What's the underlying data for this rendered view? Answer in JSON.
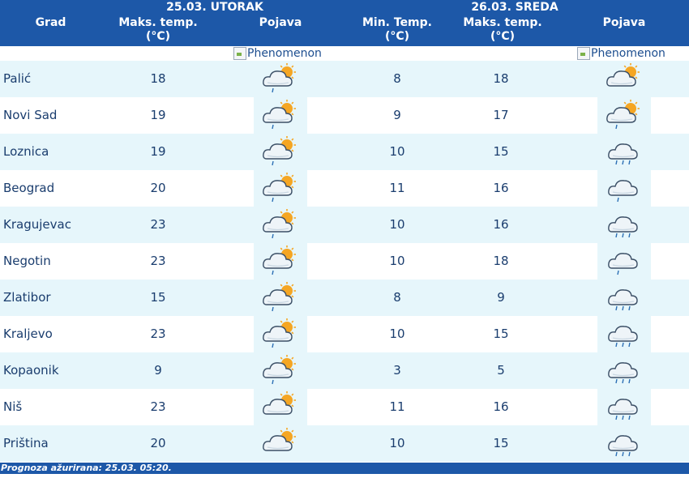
{
  "header": {
    "date1": "25.03. UTORAK",
    "date2": "26.03. SREDA",
    "col_city": "Grad",
    "col_max1": "Maks. temp.",
    "col_max1_unit": "(°C)",
    "col_phen1": "Pojava",
    "col_min2": "Min. Temp.",
    "col_min2_unit": "(°C)",
    "col_max2": "Maks. temp.",
    "col_max2_unit": "(°C)",
    "col_phen2": "Pojava"
  },
  "broken_image_alt": "Phenomenon",
  "rows": [
    {
      "city": "Palić",
      "max1": "18",
      "icon1": "cloud-sun-drizzle-icon",
      "min2": "8",
      "max2": "18",
      "icon2": "cloud-sun-icon"
    },
    {
      "city": "Novi Sad",
      "max1": "19",
      "icon1": "cloud-sun-drizzle-icon",
      "min2": "9",
      "max2": "17",
      "icon2": "cloud-sun-drizzle-icon"
    },
    {
      "city": "Loznica",
      "max1": "19",
      "icon1": "cloud-sun-drizzle-icon",
      "min2": "10",
      "max2": "15",
      "icon2": "cloud-rain-icon"
    },
    {
      "city": "Beograd",
      "max1": "20",
      "icon1": "cloud-sun-drizzle-icon",
      "min2": "11",
      "max2": "16",
      "icon2": "cloud-drizzle-icon"
    },
    {
      "city": "Kragujevac",
      "max1": "23",
      "icon1": "cloud-sun-drizzle-icon",
      "min2": "10",
      "max2": "16",
      "icon2": "cloud-rain-icon"
    },
    {
      "city": "Negotin",
      "max1": "23",
      "icon1": "cloud-sun-drizzle-icon",
      "min2": "10",
      "max2": "18",
      "icon2": "cloud-drizzle-icon"
    },
    {
      "city": "Zlatibor",
      "max1": "15",
      "icon1": "cloud-sun-drizzle-icon",
      "min2": "8",
      "max2": "9",
      "icon2": "cloud-rain-icon"
    },
    {
      "city": "Kraljevo",
      "max1": "23",
      "icon1": "cloud-sun-drizzle-icon",
      "min2": "10",
      "max2": "15",
      "icon2": "cloud-rain-icon"
    },
    {
      "city": "Kopaonik",
      "max1": "9",
      "icon1": "cloud-sun-drizzle-icon",
      "min2": "3",
      "max2": "5",
      "icon2": "cloud-rain-icon"
    },
    {
      "city": "Niš",
      "max1": "23",
      "icon1": "cloud-sun-icon",
      "min2": "11",
      "max2": "16",
      "icon2": "cloud-rain-icon"
    },
    {
      "city": "Priština",
      "max1": "20",
      "icon1": "cloud-sun-icon",
      "min2": "10",
      "max2": "15",
      "icon2": "cloud-rain-icon"
    }
  ],
  "footer": "Prognoza ažurirana:  25.03. 05:20.",
  "colors": {
    "header_bg": "#1d58a8",
    "row_alt": "#e6f6fb",
    "text": "#1a3d6e",
    "sun": "#f5a623"
  }
}
